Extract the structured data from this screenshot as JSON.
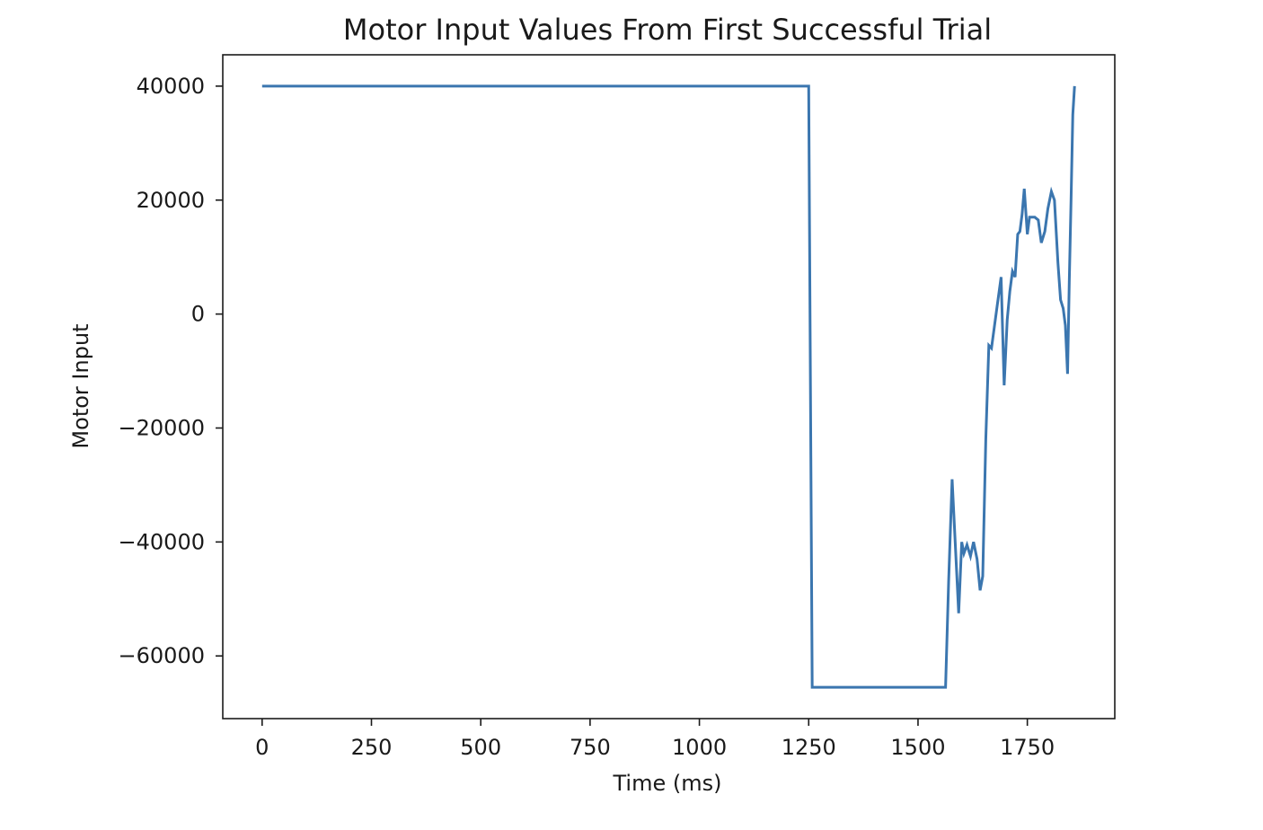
{
  "chart_data": {
    "type": "line",
    "title": "Motor Input Values From First Successful Trial",
    "xlabel": "Time (ms)",
    "ylabel": "Motor Input",
    "xlim": [
      -90,
      1950
    ],
    "ylim": [
      -71000,
      45500
    ],
    "xticks": [
      0,
      250,
      500,
      750,
      1000,
      1250,
      1500,
      1750
    ],
    "xtick_labels": [
      "0",
      "250",
      "500",
      "750",
      "1000",
      "1250",
      "1500",
      "1750"
    ],
    "yticks": [
      40000,
      20000,
      0,
      -20000,
      -40000,
      -60000
    ],
    "ytick_labels": [
      "40000",
      "20000",
      "0",
      "−20000",
      "−40000",
      "−60000"
    ],
    "grid": false,
    "line_color": "#3b76af",
    "series": [
      {
        "x": [
          0,
          1250,
          1258,
          1563,
          1570,
          1578,
          1585,
          1593,
          1600,
          1605,
          1612,
          1620,
          1627,
          1635,
          1642,
          1648,
          1655,
          1662,
          1668,
          1675,
          1682,
          1690,
          1697,
          1704,
          1710,
          1716,
          1722,
          1728,
          1733,
          1738,
          1743,
          1750,
          1755,
          1760,
          1767,
          1775,
          1782,
          1790,
          1797,
          1805,
          1812,
          1820,
          1826,
          1832,
          1837,
          1842,
          1846,
          1850,
          1854,
          1858
        ],
        "y": [
          40000,
          40000,
          -65500,
          -65500,
          -47000,
          -29000,
          -40000,
          -52500,
          -40000,
          -42000,
          -40500,
          -42500,
          -40000,
          -43000,
          -48500,
          -46000,
          -22000,
          -5500,
          -6000,
          -2000,
          2000,
          6500,
          -12500,
          -1000,
          4000,
          7500,
          6500,
          14000,
          14500,
          17500,
          22000,
          14000,
          17000,
          17000,
          17000,
          16500,
          12500,
          14500,
          18500,
          21500,
          20000,
          9000,
          2500,
          1000,
          -2000,
          -10500,
          6000,
          20000,
          35000,
          40000
        ]
      }
    ]
  }
}
